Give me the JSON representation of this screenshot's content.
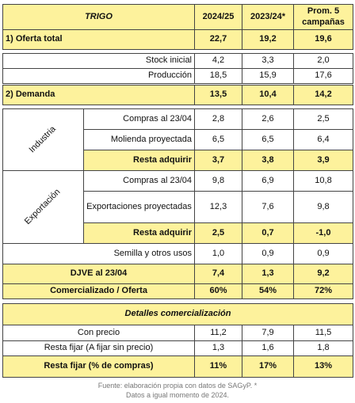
{
  "header": {
    "title": "TRIGO",
    "columns": [
      "2024/25",
      "2023/24*",
      "Prom. 5 campañas"
    ]
  },
  "rows": [
    {
      "label": "1) Oferta total",
      "values": [
        "22,7",
        "19,2",
        "19,6"
      ]
    },
    {
      "label": "Stock inicial",
      "values": [
        "4,2",
        "3,3",
        "2,0"
      ]
    },
    {
      "label": "Producción",
      "values": [
        "18,5",
        "15,9",
        "17,6"
      ]
    },
    {
      "label": "2) Demanda",
      "values": [
        "13,5",
        "10,4",
        "14,2"
      ]
    },
    {
      "label": "Compras al 23/04",
      "values": [
        "2,8",
        "2,6",
        "2,5"
      ]
    },
    {
      "label": "Molienda proyectada",
      "values": [
        "6,5",
        "6,5",
        "6,4"
      ]
    },
    {
      "label": "Resta adquirir",
      "values": [
        "3,7",
        "3,8",
        "3,9"
      ]
    },
    {
      "label": "Compras al 23/04",
      "values": [
        "9,8",
        "6,9",
        "10,8"
      ]
    },
    {
      "label": "Exportaciones proyectadas",
      "values": [
        "12,3",
        "7,6",
        "9,8"
      ]
    },
    {
      "label": "Resta adquirir",
      "values": [
        "2,5",
        "0,7",
        "-1,0"
      ]
    },
    {
      "label": "Semilla y otros usos",
      "values": [
        "1,0",
        "0,9",
        "0,9"
      ]
    },
    {
      "label": "DJVE al 23/04",
      "values": [
        "7,4",
        "1,3",
        "9,2"
      ]
    },
    {
      "label": "Comercializado / Oferta",
      "values": [
        "60%",
        "54%",
        "72%"
      ]
    }
  ],
  "groups": [
    "Industria",
    "Exportación"
  ],
  "details": {
    "title": "Detalles comercialización",
    "rows": [
      {
        "label": "Con precio",
        "values": [
          "11,2",
          "7,9",
          "11,5"
        ]
      },
      {
        "label": "Resta fijar (A fijar sin precio)",
        "values": [
          "1,3",
          "1,6",
          "1,8"
        ]
      },
      {
        "label": "Resta fijar (% de compras)",
        "values": [
          "11%",
          "17%",
          "13%"
        ]
      }
    ]
  },
  "footer": [
    "Fuente: elaboración propia con datos de SAGyP. *",
    "Datos a igual momento de 2024."
  ]
}
